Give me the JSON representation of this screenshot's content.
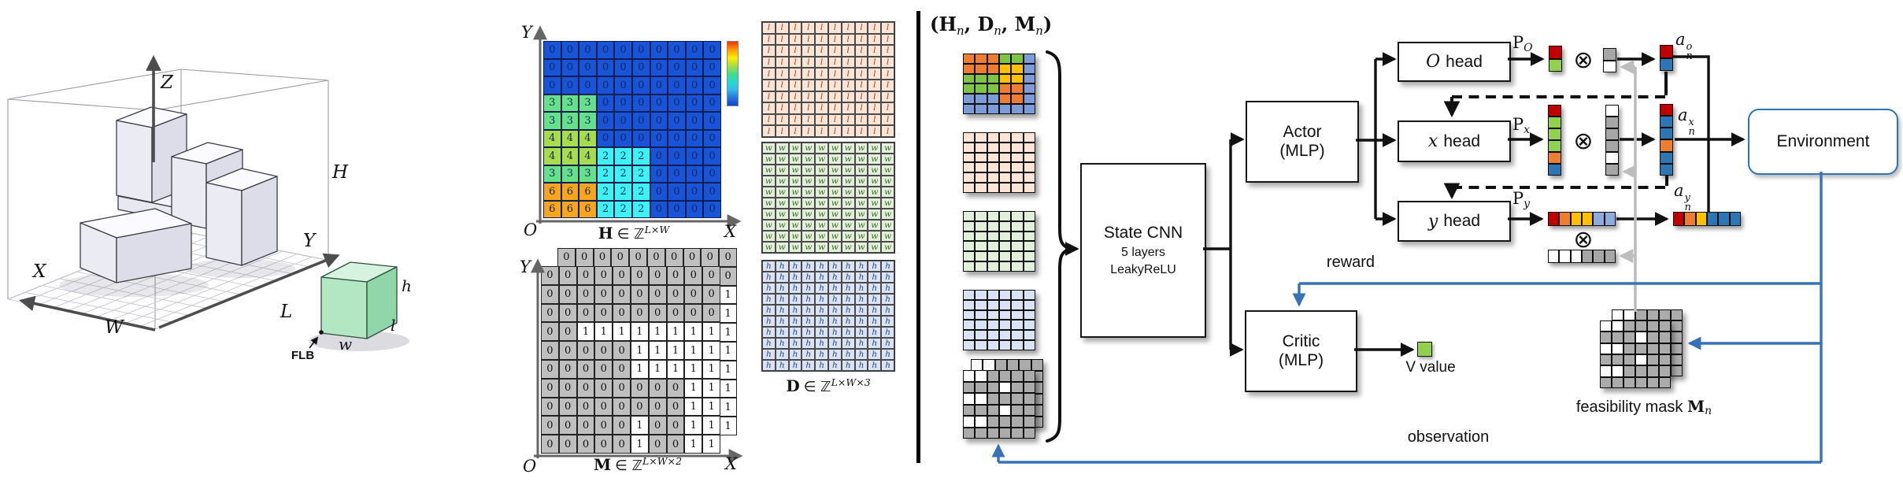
{
  "left": {
    "axes": {
      "x": "X",
      "y": "Y",
      "z": "Z"
    },
    "dims": {
      "width": "W",
      "length": "L",
      "height": "H"
    },
    "item": {
      "w": "w",
      "l": "l",
      "h": "h",
      "corner": "FLB"
    }
  },
  "middle": {
    "h_map": {
      "axis_y": "Y",
      "axis_o": "O",
      "axis_x": "X",
      "caption": {
        "sym": "H",
        "mid": "∈ ℤ",
        "sup": "L×W"
      },
      "text_color": "#0e2a63",
      "palette": {
        "0": "#1853d8",
        "2": "#3df2f2",
        "3": "#66e089",
        "4": "#a9dc4a",
        "6": "#f8a41c"
      },
      "colorbar": [
        "#ff3300",
        "#ff9900",
        "#ffee00",
        "#aadd44",
        "#44dd88",
        "#22ddcc",
        "#33bbee",
        "#2277e0",
        "#1144cc"
      ],
      "values": [
        [
          0,
          0,
          0,
          0,
          0,
          0,
          0,
          0,
          0,
          0
        ],
        [
          0,
          0,
          0,
          0,
          0,
          0,
          0,
          0,
          0,
          0
        ],
        [
          0,
          0,
          0,
          0,
          0,
          0,
          0,
          0,
          0,
          0
        ],
        [
          3,
          3,
          3,
          0,
          0,
          0,
          0,
          0,
          0,
          0
        ],
        [
          3,
          3,
          3,
          0,
          0,
          0,
          0,
          0,
          0,
          0
        ],
        [
          4,
          4,
          4,
          0,
          0,
          0,
          0,
          0,
          0,
          0
        ],
        [
          4,
          4,
          4,
          2,
          2,
          2,
          0,
          0,
          0,
          0
        ],
        [
          3,
          3,
          3,
          2,
          2,
          2,
          0,
          0,
          0,
          0
        ],
        [
          6,
          6,
          6,
          2,
          2,
          2,
          0,
          0,
          0,
          0
        ],
        [
          6,
          6,
          6,
          2,
          2,
          2,
          0,
          0,
          0,
          0
        ]
      ]
    },
    "m_map": {
      "axis_y": "Y",
      "axis_o": "O",
      "axis_x": "X",
      "caption": {
        "sym": "M",
        "mid": "∈ ℤ",
        "sup": "L×W×2"
      },
      "fill0": "#bfbfbf",
      "fill1": "#ffffff",
      "front": [
        [
          0,
          0,
          0,
          0,
          0,
          0,
          0,
          0,
          0,
          0
        ],
        [
          0,
          0,
          0,
          0,
          0,
          0,
          0,
          0,
          0,
          0
        ],
        [
          0,
          0,
          0,
          0,
          0,
          0,
          0,
          0,
          0,
          0
        ],
        [
          0,
          0,
          1,
          1,
          1,
          1,
          1,
          1,
          1,
          1
        ],
        [
          0,
          0,
          0,
          0,
          0,
          1,
          1,
          1,
          1,
          1
        ],
        [
          0,
          0,
          0,
          0,
          0,
          1,
          1,
          1,
          1,
          1
        ],
        [
          0,
          0,
          0,
          0,
          0,
          0,
          0,
          0,
          1,
          1
        ],
        [
          0,
          0,
          0,
          0,
          0,
          0,
          0,
          0,
          1,
          1
        ],
        [
          0,
          0,
          0,
          0,
          0,
          1,
          0,
          0,
          1,
          1
        ],
        [
          0,
          0,
          0,
          0,
          0,
          1,
          0,
          0,
          1,
          1
        ]
      ],
      "back_top_row": [
        0,
        0,
        0,
        0,
        0,
        0,
        0,
        0,
        0,
        0
      ],
      "back_right_col": [
        0,
        0,
        1,
        1,
        1,
        1,
        1,
        1,
        1,
        1
      ]
    },
    "d_map": {
      "caption": {
        "sym": "D",
        "mid": "∈ ℤ",
        "sup": "L×W×3"
      },
      "layers": [
        {
          "letter": "l",
          "fill": "#fce4d6",
          "ink": "#a0421f"
        },
        {
          "letter": "w",
          "fill": "#e2efda",
          "ink": "#41682a"
        },
        {
          "letter": "h",
          "fill": "#dae3f3",
          "ink": "#27457e"
        }
      ]
    }
  },
  "right": {
    "input_title": {
      "open": "(",
      "h": "H",
      "d": "D",
      "m": "M",
      "sub": "n",
      "comma": ", ",
      "close": ")"
    },
    "state_cnn": {
      "title": "State CNN",
      "sub1": "5 layers",
      "sub2": "LeakyReLU"
    },
    "actor": {
      "top": "Actor",
      "bottom": "(MLP)"
    },
    "critic": {
      "top": "Critic",
      "bottom": "(MLP)"
    },
    "heads": {
      "o_var": "O",
      "x_var": "x",
      "y_var": "y",
      "word": "head"
    },
    "p": {
      "base": "P",
      "o": "O",
      "x": "x",
      "y": "y"
    },
    "a": {
      "base": "a",
      "sub": "n",
      "o": "o",
      "x": "x",
      "y": "y"
    },
    "otimes": "⊗",
    "environment": "Environment",
    "reward": "reward",
    "observation": "observation",
    "v_value": "V value",
    "v_color": "#92d050",
    "feasibility": {
      "text": "feasibility mask",
      "sym": "M",
      "sub": "n"
    },
    "stack": {
      "height_palette": {
        "o": "#ed7d31",
        "g": "#7ec544",
        "y": "#ffc000",
        "b": "#7b9cd8"
      },
      "heightmap": [
        [
          "o",
          "o",
          "o",
          "g",
          "g",
          "b"
        ],
        [
          "o",
          "o",
          "o",
          "y",
          "y",
          "b"
        ],
        [
          "g",
          "g",
          "g",
          "y",
          "y",
          "b"
        ],
        [
          "g",
          "g",
          "g",
          "o",
          "o",
          "b"
        ],
        [
          "b",
          "b",
          "b",
          "o",
          "o",
          "b"
        ],
        [
          "b",
          "b",
          "b",
          "b",
          "b",
          "b"
        ]
      ],
      "plain_fills": [
        "#fce4d6",
        "#e2efda",
        "#dae3f3"
      ],
      "mask_fill0": "#ababab",
      "mask_fill1": "#ffffff",
      "mask": [
        [
          1,
          1,
          0,
          0,
          0,
          0
        ],
        [
          0,
          0,
          0,
          1,
          0,
          0
        ],
        [
          1,
          1,
          0,
          0,
          0,
          0
        ],
        [
          0,
          0,
          0,
          1,
          0,
          0
        ],
        [
          1,
          1,
          0,
          0,
          0,
          0
        ],
        [
          0,
          0,
          0,
          0,
          0,
          0
        ]
      ]
    },
    "vectors": {
      "p_o": [
        "#c00000",
        "#92d050"
      ],
      "g_o": [
        "#a6a6a6",
        "#ffffff"
      ],
      "a_o": [
        "#c00000",
        "#2e75b6"
      ],
      "p_x": [
        "#c00000",
        "#92d050",
        "#92d050",
        "#92d050",
        "#ed7d31",
        "#2e75b6"
      ],
      "g_x": [
        "#ffffff",
        "#a6a6a6",
        "#a6a6a6",
        "#a6a6a6",
        "#ffffff",
        "#a6a6a6"
      ],
      "a_x": [
        "#c00000",
        "#2e75b6",
        "#2e75b6",
        "#ed7d31",
        "#2e75b6",
        "#2e75b6"
      ],
      "p_y": [
        "#c00000",
        "#ed7d31",
        "#ffc000",
        "#ffc000",
        "#8faadc",
        "#8faadc"
      ],
      "g_y": [
        "#ffffff",
        "#ffffff",
        "#ffffff",
        "#a6a6a6",
        "#a6a6a6",
        "#a6a6a6"
      ],
      "a_y": [
        "#c00000",
        "#ed7d31",
        "#ffc000",
        "#2e75b6",
        "#2e75b6",
        "#2e75b6"
      ]
    }
  }
}
